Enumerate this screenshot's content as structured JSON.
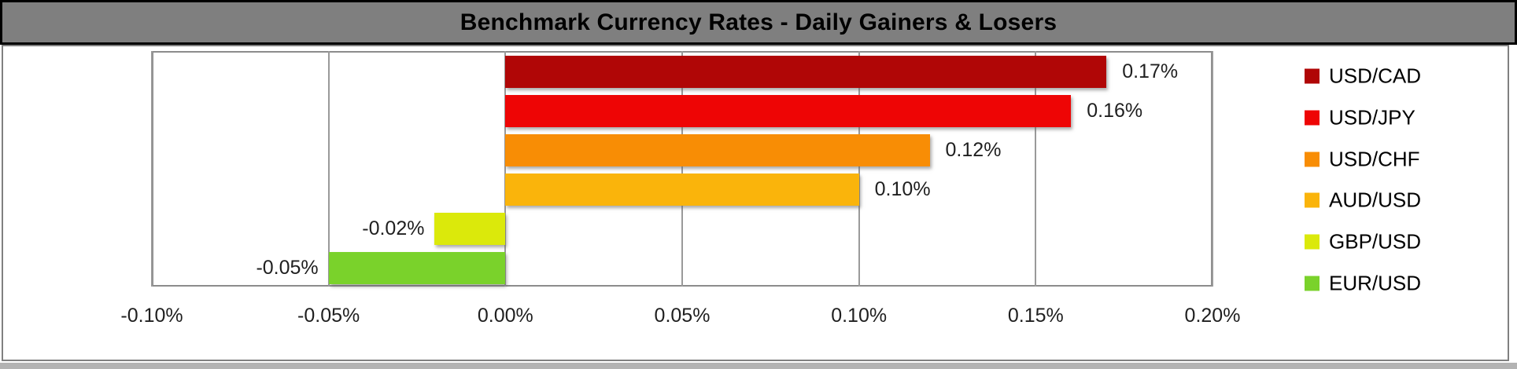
{
  "title": "Benchmark Currency Rates - Daily Gainers & Losers",
  "chart_data": {
    "type": "bar",
    "orientation": "horizontal",
    "title": "Benchmark Currency Rates - Daily Gainers & Losers",
    "categories": [
      "USD/CAD",
      "USD/JPY",
      "USD/CHF",
      "AUD/USD",
      "GBP/USD",
      "EUR/USD"
    ],
    "values": [
      0.17,
      0.16,
      0.12,
      0.1,
      -0.02,
      -0.05
    ],
    "value_labels": [
      "0.17%",
      "0.16%",
      "0.12%",
      "0.10%",
      "-0.02%",
      "-0.05%"
    ],
    "bar_colors": [
      "#B00606",
      "#EE0505",
      "#F88D05",
      "#FAB40B",
      "#DBE90B",
      "#7AD22B"
    ],
    "xlabel": "",
    "ylabel": "",
    "xlim": [
      -0.1,
      0.2
    ],
    "x_ticks": [
      {
        "value": -0.1,
        "label": "-0.10%"
      },
      {
        "value": -0.05,
        "label": "-0.05%"
      },
      {
        "value": 0.0,
        "label": "0.00%"
      },
      {
        "value": 0.05,
        "label": "0.05%"
      },
      {
        "value": 0.1,
        "label": "0.10%"
      },
      {
        "value": 0.15,
        "label": "0.15%"
      },
      {
        "value": 0.2,
        "label": "0.20%"
      }
    ],
    "grid": true,
    "legend_position": "right"
  },
  "legend": {
    "items": [
      {
        "label": "USD/CAD",
        "color": "#B00606"
      },
      {
        "label": "USD/JPY",
        "color": "#EE0505"
      },
      {
        "label": "USD/CHF",
        "color": "#F88D05"
      },
      {
        "label": "AUD/USD",
        "color": "#FAB40B"
      },
      {
        "label": "GBP/USD",
        "color": "#DBE90B"
      },
      {
        "label": "EUR/USD",
        "color": "#7AD22B"
      }
    ]
  },
  "colors": {
    "title_bg": "#7F7F7F",
    "title_text": "#000000",
    "frame_border": "#808080",
    "plot_border": "#8C8C8C",
    "gridline": "#9A9A9A",
    "tick_text": "#1F1F1F",
    "value_label_text": "#1F1F1F",
    "plot_bg": "#FFFFFF"
  }
}
